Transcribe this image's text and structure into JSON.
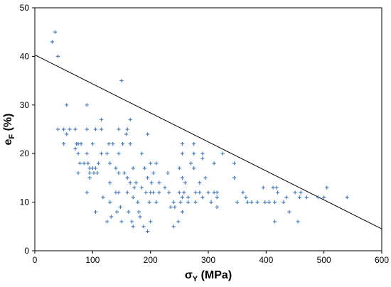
{
  "chart_data": {
    "type": "scatter",
    "title": "",
    "xlabel": {
      "main": "σ",
      "sub": "Y",
      "unit": " (MPa)"
    },
    "ylabel": {
      "main": "e",
      "sub": "F",
      "unit": " (%)"
    },
    "xlim": [
      0,
      600
    ],
    "ylim": [
      0,
      50
    ],
    "xticks": [
      0,
      100,
      200,
      300,
      400,
      500,
      600
    ],
    "yticks": [
      0,
      10,
      20,
      30,
      40,
      50
    ],
    "grid": false,
    "legend": "none",
    "colors": {
      "points": "#4a7ebb",
      "fit_line": "#000000",
      "axis": "#000000"
    },
    "trend_line": {
      "x": [
        0,
        600
      ],
      "y": [
        40.3,
        4.5
      ]
    },
    "points": [
      [
        30,
        43
      ],
      [
        35,
        45
      ],
      [
        40,
        40
      ],
      [
        40,
        25
      ],
      [
        50,
        25
      ],
      [
        50,
        22
      ],
      [
        55,
        30
      ],
      [
        55,
        24
      ],
      [
        60,
        25
      ],
      [
        70,
        25
      ],
      [
        70,
        21
      ],
      [
        72,
        22
      ],
      [
        75,
        22
      ],
      [
        75,
        20
      ],
      [
        75,
        16
      ],
      [
        78,
        18
      ],
      [
        80,
        22
      ],
      [
        85,
        18
      ],
      [
        90,
        30
      ],
      [
        90,
        25
      ],
      [
        90,
        20
      ],
      [
        90,
        12
      ],
      [
        92,
        18
      ],
      [
        95,
        17
      ],
      [
        95,
        15
      ],
      [
        95,
        16
      ],
      [
        100,
        22
      ],
      [
        100,
        17
      ],
      [
        102,
        16
      ],
      [
        105,
        25
      ],
      [
        105,
        17
      ],
      [
        105,
        8
      ],
      [
        108,
        16
      ],
      [
        110,
        18
      ],
      [
        115,
        27
      ],
      [
        115,
        25
      ],
      [
        115,
        20
      ],
      [
        118,
        11
      ],
      [
        125,
        20
      ],
      [
        125,
        6
      ],
      [
        128,
        22
      ],
      [
        130,
        18
      ],
      [
        130,
        14
      ],
      [
        130,
        10
      ],
      [
        132,
        7
      ],
      [
        135,
        22
      ],
      [
        140,
        17
      ],
      [
        140,
        12
      ],
      [
        142,
        8
      ],
      [
        145,
        25
      ],
      [
        145,
        20
      ],
      [
        145,
        16
      ],
      [
        145,
        12
      ],
      [
        148,
        9
      ],
      [
        150,
        35
      ],
      [
        150,
        6
      ],
      [
        152,
        22
      ],
      [
        155,
        16
      ],
      [
        158,
        24
      ],
      [
        160,
        25
      ],
      [
        160,
        15
      ],
      [
        160,
        12
      ],
      [
        162,
        8
      ],
      [
        165,
        27
      ],
      [
        165,
        22
      ],
      [
        165,
        14
      ],
      [
        168,
        6
      ],
      [
        170,
        17
      ],
      [
        170,
        11
      ],
      [
        170,
        5
      ],
      [
        172,
        13
      ],
      [
        175,
        14
      ],
      [
        178,
        10
      ],
      [
        180,
        8
      ],
      [
        182,
        7
      ],
      [
        185,
        20
      ],
      [
        185,
        13
      ],
      [
        188,
        5
      ],
      [
        190,
        17
      ],
      [
        192,
        12
      ],
      [
        195,
        24
      ],
      [
        195,
        15
      ],
      [
        195,
        4
      ],
      [
        198,
        10
      ],
      [
        200,
        18
      ],
      [
        200,
        12
      ],
      [
        200,
        6
      ],
      [
        202,
        14
      ],
      [
        205,
        16
      ],
      [
        205,
        12
      ],
      [
        210,
        18
      ],
      [
        210,
        10
      ],
      [
        215,
        14
      ],
      [
        215,
        12
      ],
      [
        225,
        13
      ],
      [
        230,
        16
      ],
      [
        232,
        12
      ],
      [
        235,
        9
      ],
      [
        240,
        10
      ],
      [
        240,
        5
      ],
      [
        242,
        9
      ],
      [
        248,
        6
      ],
      [
        250,
        17
      ],
      [
        250,
        12
      ],
      [
        252,
        10
      ],
      [
        255,
        22
      ],
      [
        255,
        20
      ],
      [
        255,
        15
      ],
      [
        255,
        11
      ],
      [
        255,
        8
      ],
      [
        258,
        12
      ],
      [
        260,
        14
      ],
      [
        265,
        11
      ],
      [
        265,
        10
      ],
      [
        270,
        18
      ],
      [
        275,
        22
      ],
      [
        275,
        20
      ],
      [
        275,
        17
      ],
      [
        278,
        12
      ],
      [
        278,
        10
      ],
      [
        285,
        14
      ],
      [
        285,
        12
      ],
      [
        290,
        20
      ],
      [
        290,
        19
      ],
      [
        290,
        11
      ],
      [
        295,
        15
      ],
      [
        300,
        12
      ],
      [
        305,
        10
      ],
      [
        310,
        18
      ],
      [
        310,
        12
      ],
      [
        315,
        12
      ],
      [
        315,
        11
      ],
      [
        315,
        9
      ],
      [
        325,
        20
      ],
      [
        345,
        18
      ],
      [
        345,
        15
      ],
      [
        350,
        10
      ],
      [
        360,
        12
      ],
      [
        365,
        11
      ],
      [
        368,
        10
      ],
      [
        375,
        10
      ],
      [
        385,
        10
      ],
      [
        395,
        13
      ],
      [
        398,
        10
      ],
      [
        405,
        10
      ],
      [
        412,
        13
      ],
      [
        415,
        6
      ],
      [
        415,
        10
      ],
      [
        418,
        13
      ],
      [
        420,
        12
      ],
      [
        430,
        10
      ],
      [
        435,
        11
      ],
      [
        440,
        8
      ],
      [
        450,
        12
      ],
      [
        455,
        6
      ],
      [
        458,
        11
      ],
      [
        460,
        12
      ],
      [
        470,
        11
      ],
      [
        490,
        11
      ],
      [
        500,
        11
      ],
      [
        505,
        13
      ],
      [
        540,
        11
      ]
    ]
  }
}
